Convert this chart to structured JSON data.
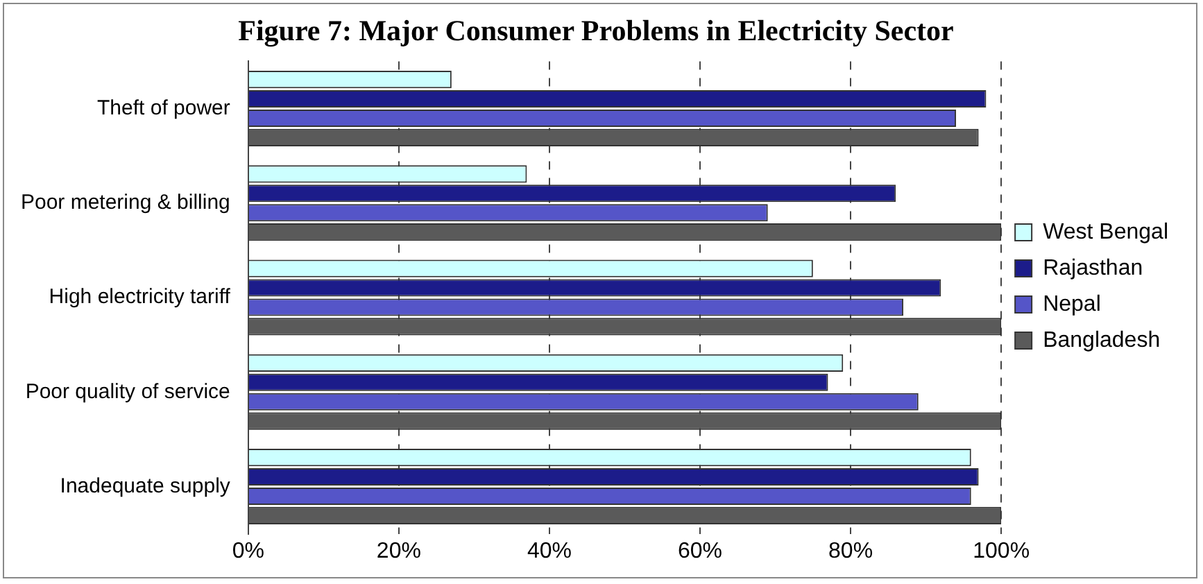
{
  "chart_data": {
    "type": "bar",
    "orientation": "horizontal",
    "title": "Figure 7: Major Consumer Problems in Electricity Sector",
    "categories": [
      "Theft of power",
      "Poor metering & billing",
      "High electricity tariff",
      "Poor quality of service",
      "Inadequate supply"
    ],
    "series": [
      {
        "name": "West Bengal",
        "color": "#ccffff",
        "values": [
          27,
          37,
          75,
          79,
          96
        ]
      },
      {
        "name": "Rajasthan",
        "color": "#1c1c8a",
        "values": [
          98,
          86,
          92,
          77,
          97
        ]
      },
      {
        "name": "Nepal",
        "color": "#5555c8",
        "values": [
          94,
          69,
          87,
          89,
          96
        ]
      },
      {
        "name": "Bangladesh",
        "color": "#5a5a5a",
        "values": [
          97,
          100,
          100,
          100,
          100
        ]
      }
    ],
    "xlim": [
      0,
      100
    ],
    "xticks": [
      {
        "value": 0,
        "label": "0%"
      },
      {
        "value": 20,
        "label": "20%"
      },
      {
        "value": 40,
        "label": "40%"
      },
      {
        "value": 60,
        "label": "60%"
      },
      {
        "value": 80,
        "label": "80%"
      },
      {
        "value": 100,
        "label": "100%"
      }
    ],
    "grid": "x",
    "legend": "right"
  }
}
